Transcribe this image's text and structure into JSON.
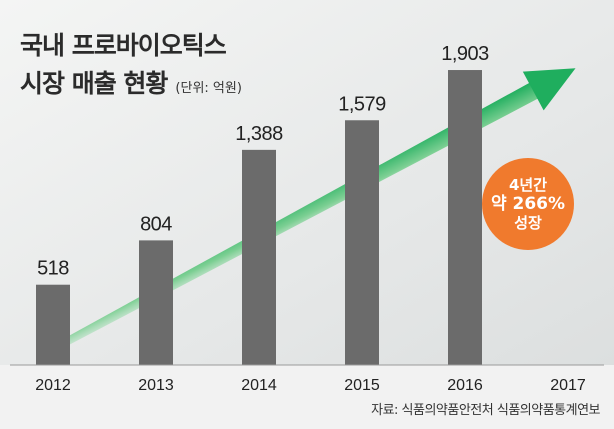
{
  "title_line1": "국내 프로바이오틱스",
  "title_line2": "시장 매출 현황",
  "unit": "(단위: 억원)",
  "badge": {
    "line1": "4년간",
    "line2": "약 266%",
    "line3": "성장"
  },
  "source": "자료: 식품의약품안전처 식품의약품통계연보",
  "colors": {
    "bar": "#6b6b6b",
    "arrow": "#2db56a",
    "badge": "#f07a2d",
    "background": "#eceded"
  },
  "chart_data": {
    "type": "bar",
    "categories": [
      "2012",
      "2013",
      "2014",
      "2015",
      "2016",
      "2017"
    ],
    "values": [
      518,
      804,
      1388,
      1579,
      1903,
      null
    ],
    "labels": [
      "518",
      "804",
      "1,388",
      "1,579",
      "1,903"
    ],
    "ylim": [
      0,
      2000
    ],
    "grid": false,
    "legend": "none"
  }
}
